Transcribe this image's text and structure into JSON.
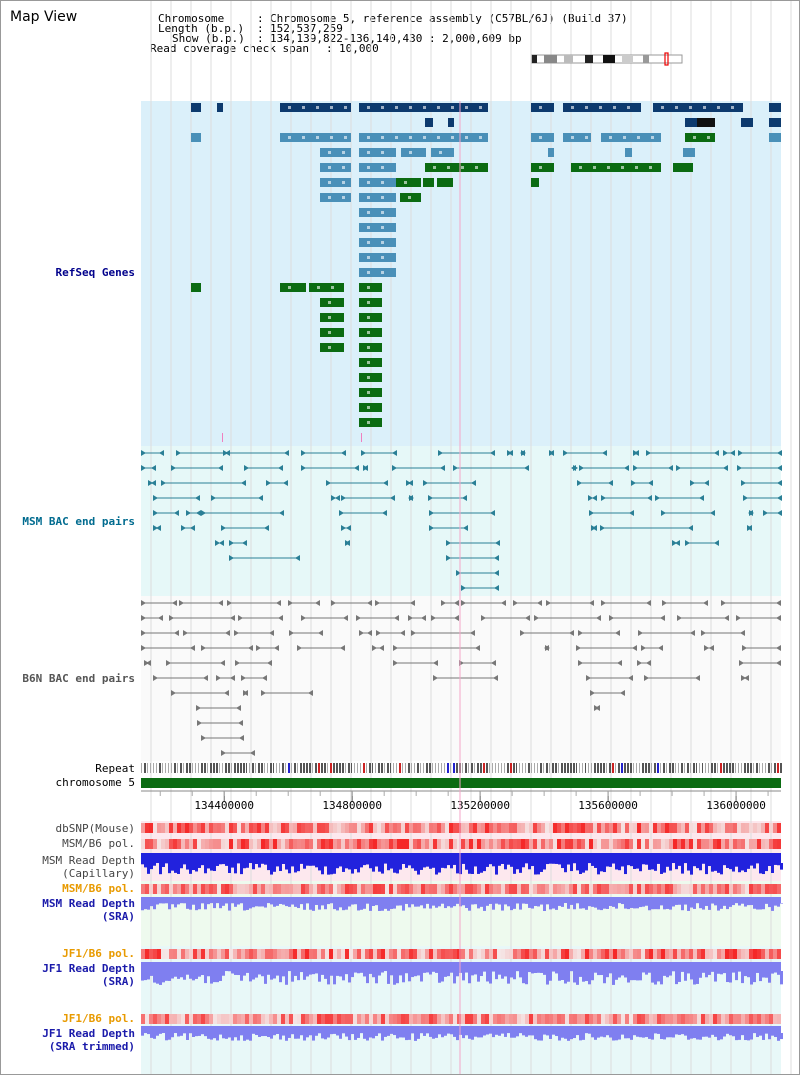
{
  "page": {
    "title": "Map View"
  },
  "header": {
    "chromosome_key": "Chromosome",
    "chromosome_value": "Chromosome 5, reference assembly (C57BL/6J) (Build 37)",
    "length_key": "Length (b.p.)",
    "length_value": "152,537,259",
    "show_key": "Show (b.p.)",
    "show_value": "134,139,822-136,140,430 : 2,000,609 bp",
    "coverage_key": "Read coverage check span",
    "coverage_value": "10,000"
  },
  "tracks": {
    "refseq": "RefSeq Genes",
    "msm_bac": "MSM BAC end pairs",
    "b6n_bac": "B6N BAC end pairs",
    "repeat": "Repeat",
    "chromosome": "chromosome 5",
    "dbsnp": "dbSNP(Mouse)",
    "msm_b6_pol_1": "MSM/B6 pol.",
    "msm_read_depth_cap_1": "MSM Read Depth",
    "msm_read_depth_cap_2": "(Capillary)",
    "msm_b6_pol_2": "MSM/B6 pol.",
    "msm_read_depth_sra_1": "MSM Read Depth",
    "msm_read_depth_sra_2": "(SRA)",
    "jf1_b6_pol_1": "JF1/B6 pol.",
    "jf1_read_depth_sra_1": "JF1 Read Depth",
    "jf1_read_depth_sra_2": "(SRA)",
    "jf1_b6_pol_2": "JF1/B6 pol.",
    "jf1_read_depth_trim_1": "JF1 Read Depth",
    "jf1_read_depth_trim_2": "(SRA trimmed)"
  },
  "axis": {
    "ticks": [
      "134400000",
      "134800000",
      "135200000",
      "135600000",
      "136000000"
    ],
    "tick_values": [
      134400000,
      134800000,
      135200000,
      135600000,
      136000000
    ],
    "range": [
      134139822,
      136140430
    ]
  },
  "colors": {
    "refseq_bg": "#dbf0fa",
    "bac_bg": "#e6f8f8",
    "gene_navy": "#0d3a6e",
    "gene_light": "#4a90b8",
    "gene_green": "#0b6b12",
    "msm_bac": "#2a7f96",
    "b6n_bac": "#777777",
    "chrom_band": "#0b6b12",
    "depth_blue": "#2222dd",
    "depth_light": "#7f7ff0",
    "pol_red": "#f05050"
  }
}
